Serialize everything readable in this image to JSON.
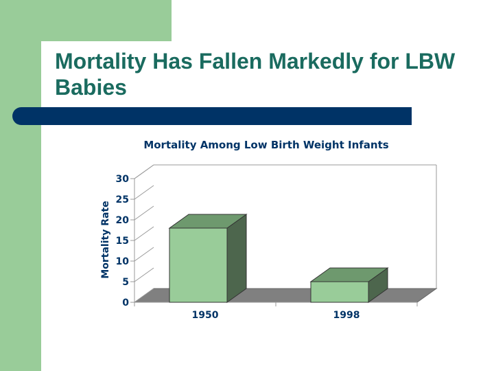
{
  "slide": {
    "title": "Mortality Has Fallen Markedly for LBW Babies"
  },
  "chart_data": {
    "type": "bar",
    "title": "Mortality Among Low Birth Weight Infants",
    "xlabel": "",
    "ylabel": "Mortality Rate",
    "categories": [
      "1950",
      "1998"
    ],
    "values": [
      18,
      5
    ],
    "ylim": [
      0,
      30
    ],
    "yticks": [
      0,
      5,
      10,
      15,
      20,
      25,
      30
    ],
    "grid": false,
    "legend": "none",
    "three_d": true,
    "colors": {
      "bar_front": "#99cc99",
      "bar_top": "#6e996e",
      "bar_side": "#4d664d",
      "floor": "#808080",
      "text": "#003366"
    }
  }
}
